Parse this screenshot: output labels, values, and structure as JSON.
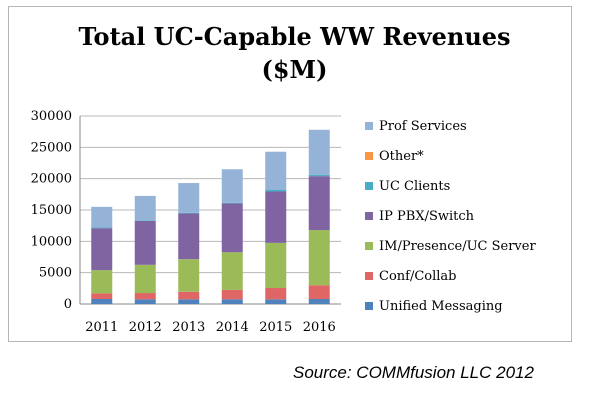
{
  "source": "Source: COMMfusion LLC 2012",
  "chart_data": {
    "type": "bar",
    "stacked": true,
    "title_line1": "Total UC-Capable WW Revenues",
    "title_line2": "($M)",
    "xlabel": "",
    "ylabel": "",
    "ylim": [
      0,
      30000
    ],
    "yticks": [
      "0",
      "5000",
      "10000",
      "15000",
      "20000",
      "25000",
      "30000"
    ],
    "grid": true,
    "legend_position": "right",
    "categories": [
      "2011",
      "2012",
      "2013",
      "2014",
      "2015",
      "2016"
    ],
    "series": [
      {
        "name": "Unified Messaging",
        "color": "#4f81bd",
        "values": [
          800,
          750,
          750,
          750,
          750,
          800
        ]
      },
      {
        "name": "Conf/Collab",
        "color": "#e06666",
        "values": [
          900,
          1000,
          1200,
          1500,
          1800,
          2200
        ]
      },
      {
        "name": "IM/Presence/UC Server",
        "color": "#9bbb59",
        "values": [
          3700,
          4500,
          5200,
          6000,
          7200,
          8800
        ]
      },
      {
        "name": "IP PBX/Switch",
        "color": "#8064a2",
        "values": [
          6700,
          7000,
          7300,
          7800,
          8200,
          8600
        ]
      },
      {
        "name": "UC Clients",
        "color": "#4bacc6",
        "values": [
          100,
          100,
          100,
          100,
          300,
          200
        ]
      },
      {
        "name": "Other*",
        "color": "#f79646",
        "values": [
          0,
          0,
          0,
          0,
          0,
          0
        ]
      },
      {
        "name": "Prof Services",
        "color": "#95b3d7",
        "values": [
          3300,
          3900,
          4750,
          5350,
          6050,
          7200
        ]
      }
    ]
  }
}
